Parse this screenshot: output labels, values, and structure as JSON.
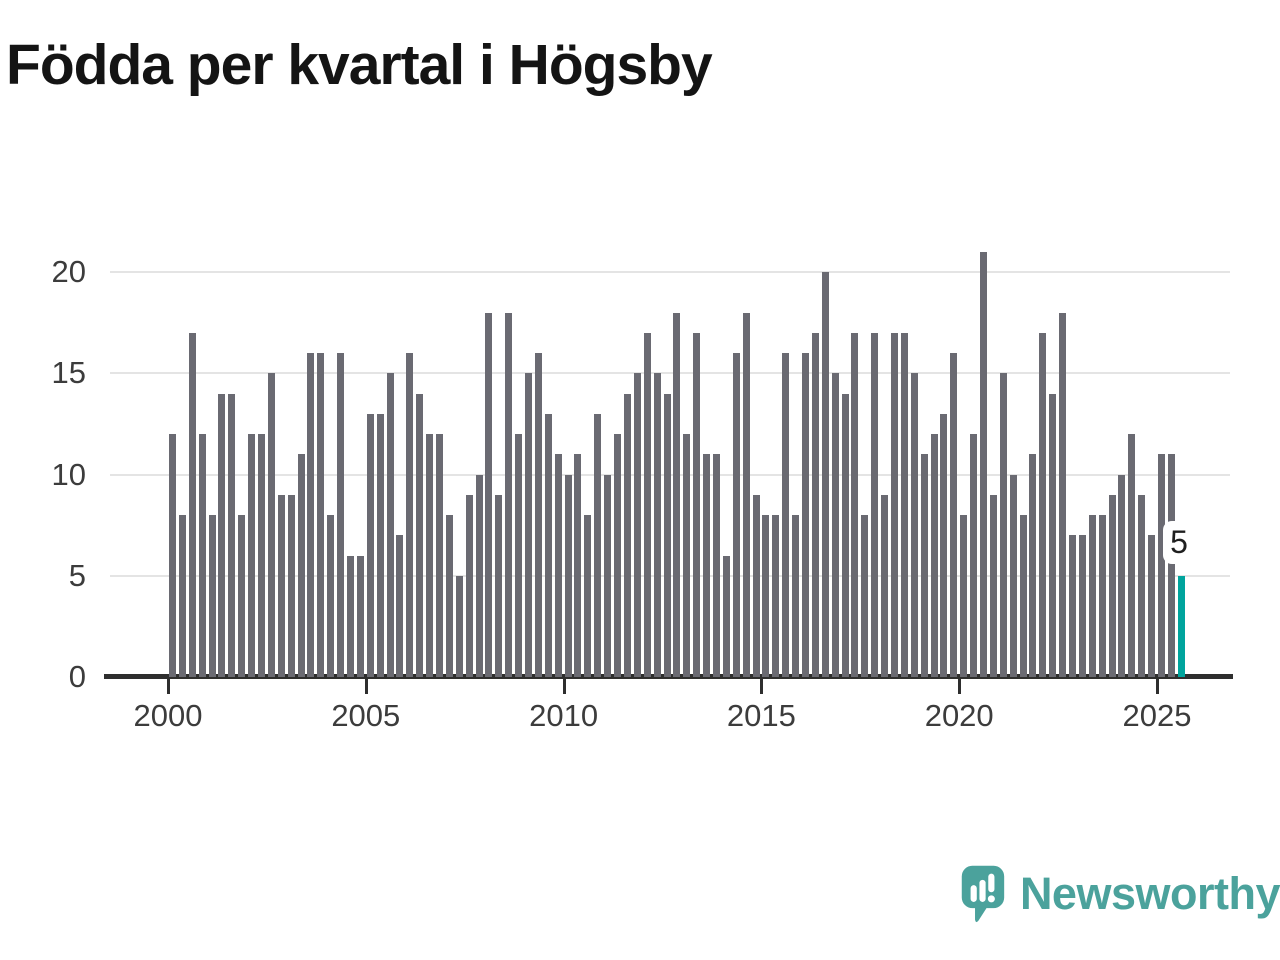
{
  "title": "Födda per kvartal i Högsby",
  "annotation": {
    "last_value_label": "5"
  },
  "branding": {
    "logo_text": "Newsworthy"
  },
  "colors": {
    "bar": "#6A6A72",
    "highlight": "#00A49D",
    "brand": "#4BA29C",
    "grid": "#E4E4E4",
    "axis": "#2E2E2E",
    "tick_label": "#3C3C3C",
    "title": "#141414"
  },
  "chart_data": {
    "type": "bar",
    "title": "Födda per kvartal i Högsby",
    "x_start": "2000 Q1",
    "x_end": "2025 Q3",
    "frequency": "quarterly",
    "x_tick_labels": [
      "2000",
      "2005",
      "2010",
      "2015",
      "2020",
      "2025"
    ],
    "y_ticks": [
      0,
      5,
      10,
      15,
      20
    ],
    "ylim": [
      0,
      21
    ],
    "grid": "horizontal",
    "legend": "none",
    "highlight_index": 102,
    "highlight_value": 5,
    "values": [
      12,
      8,
      17,
      12,
      8,
      14,
      14,
      8,
      12,
      12,
      15,
      9,
      9,
      11,
      16,
      16,
      8,
      16,
      6,
      6,
      13,
      13,
      15,
      7,
      16,
      14,
      12,
      12,
      8,
      5,
      9,
      10,
      18,
      9,
      18,
      12,
      15,
      16,
      13,
      11,
      10,
      11,
      8,
      13,
      10,
      12,
      14,
      15,
      17,
      15,
      14,
      18,
      12,
      17,
      11,
      11,
      6,
      16,
      18,
      9,
      8,
      8,
      16,
      8,
      16,
      17,
      20,
      15,
      14,
      17,
      8,
      17,
      9,
      17,
      17,
      15,
      11,
      12,
      13,
      16,
      8,
      12,
      21,
      9,
      15,
      10,
      8,
      11,
      17,
      14,
      18,
      7,
      7,
      8,
      8,
      9,
      10,
      12,
      9,
      7,
      11,
      11,
      5
    ]
  }
}
